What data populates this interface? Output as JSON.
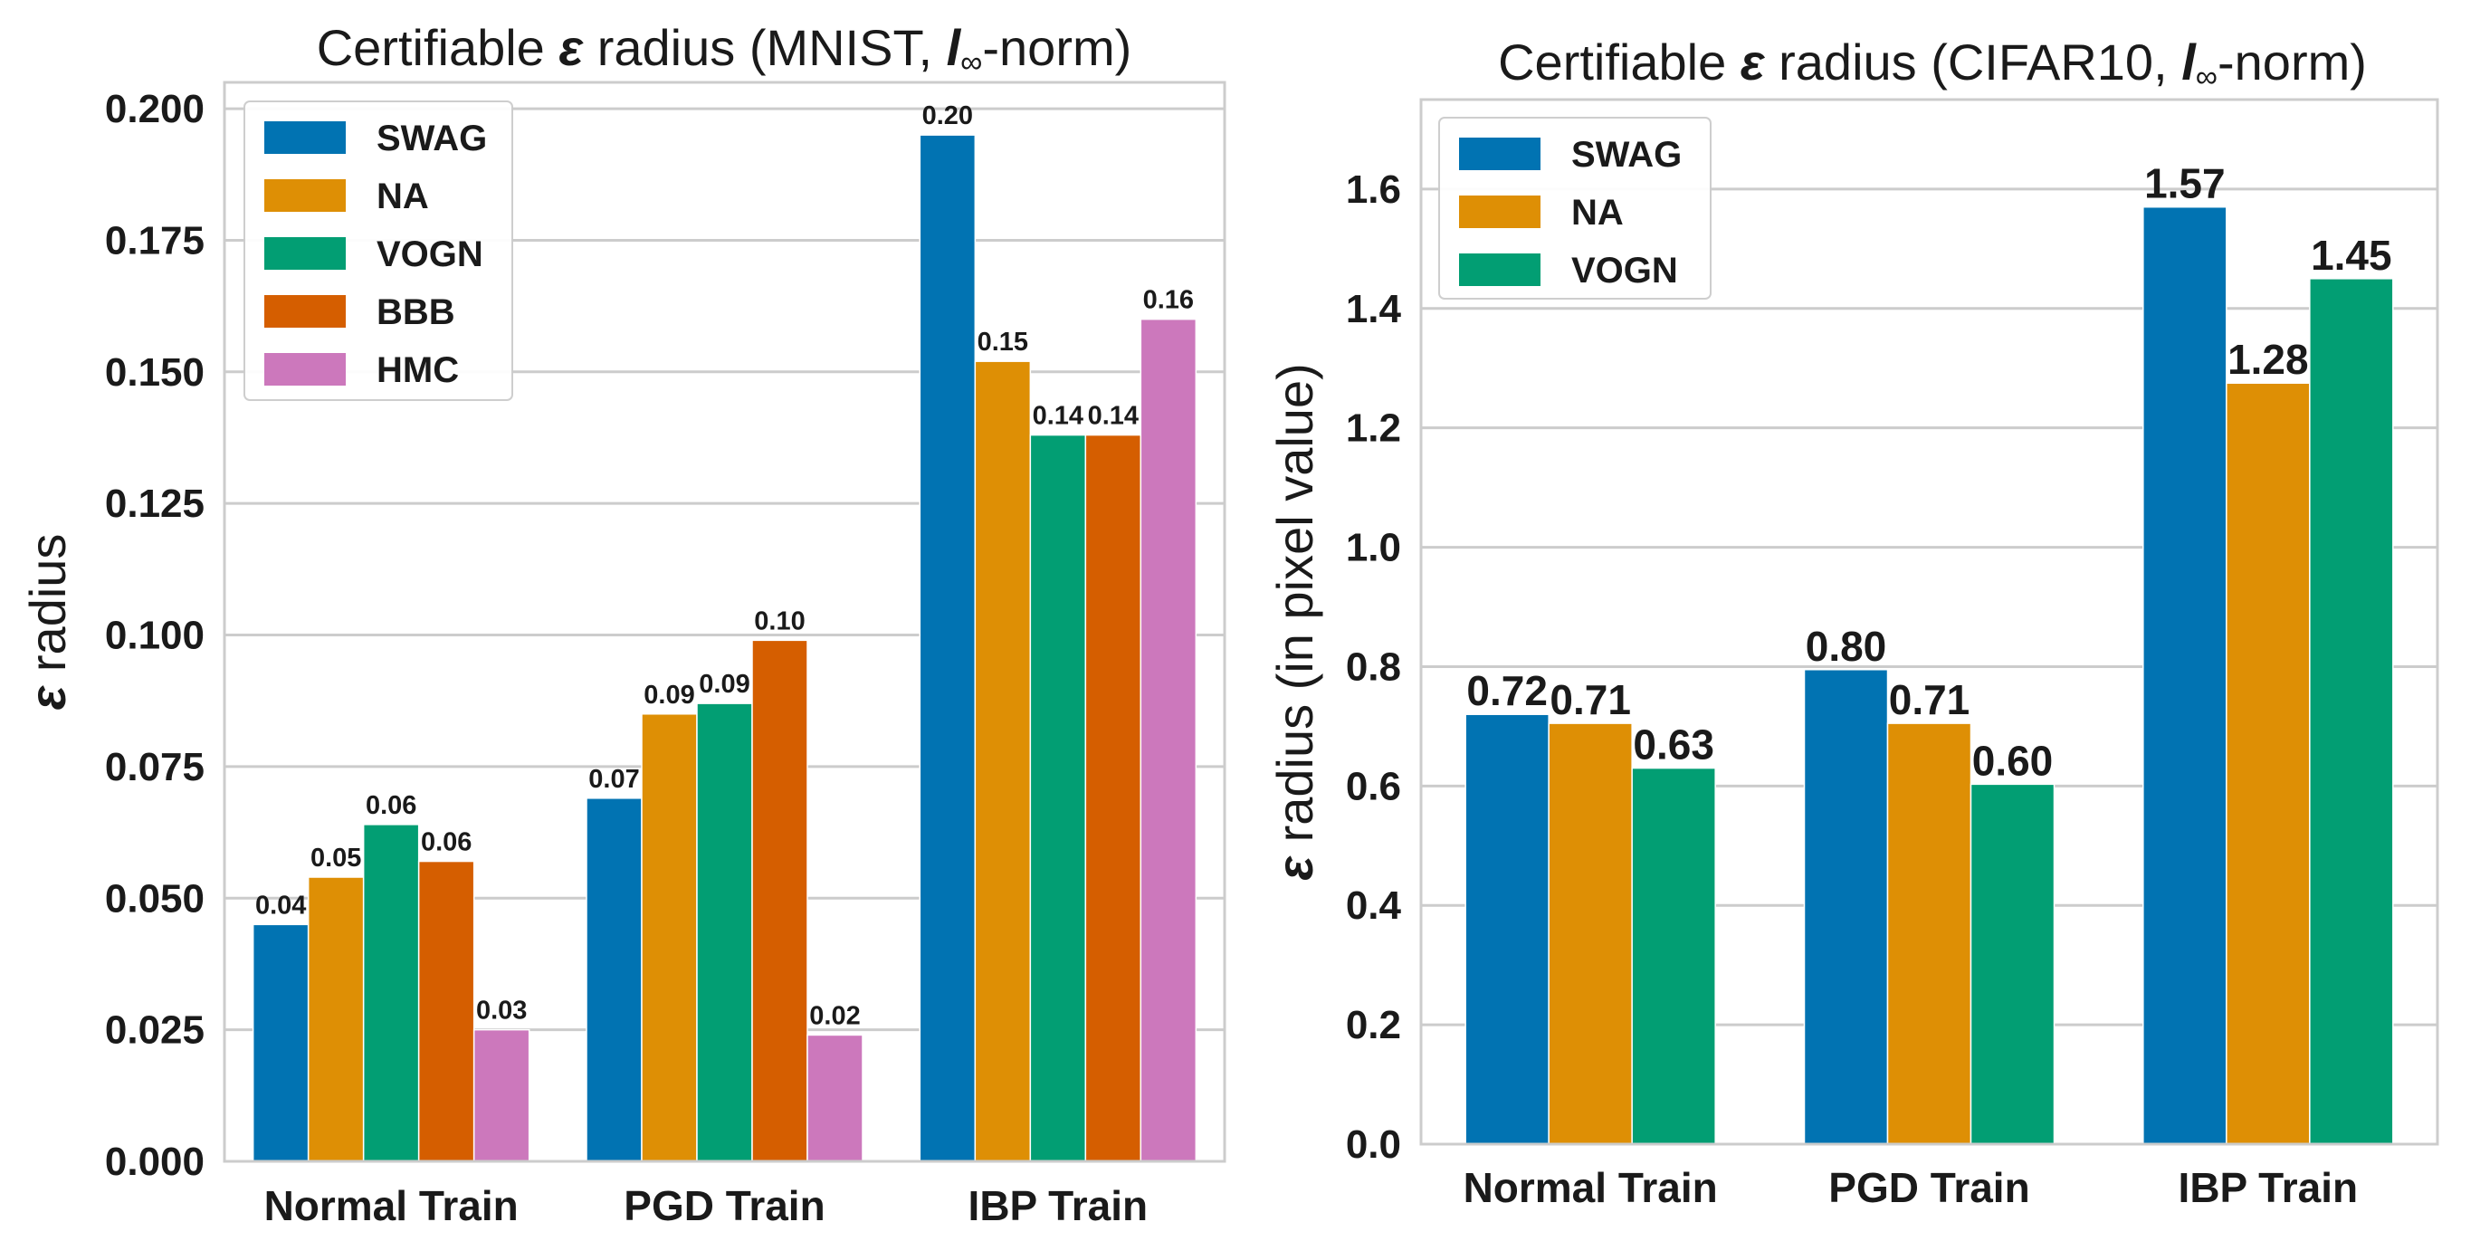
{
  "colors": {
    "SWAG": "#0173b2",
    "NA": "#de8f05",
    "VOGN": "#029e73",
    "BBB": "#d55e00",
    "HMC": "#cc78bc",
    "grid": "#cccccc",
    "frame": "#cccccc",
    "text": "#1a1a1a"
  },
  "chart_data": [
    {
      "type": "bar",
      "title_parts": [
        "Certifiable ",
        "ε",
        " radius (MNIST, ",
        "l",
        "∞",
        "-norm)"
      ],
      "xlabel": "",
      "ylabel_parts": [
        "ε",
        " radius"
      ],
      "categories": [
        "Normal Train",
        "PGD Train",
        "IBP Train"
      ],
      "ylim": [
        0,
        0.205
      ],
      "yticks": [
        "0.000",
        "0.025",
        "0.050",
        "0.075",
        "0.100",
        "0.125",
        "0.150",
        "0.175",
        "0.200"
      ],
      "ytick_values": [
        0,
        0.025,
        0.05,
        0.075,
        0.1,
        0.125,
        0.15,
        0.175,
        0.2
      ],
      "grid": true,
      "legend_position": "top-left",
      "series": [
        {
          "name": "SWAG",
          "values": [
            0.045,
            0.069,
            0.195
          ],
          "labels": [
            "0.04",
            "0.07",
            "0.20"
          ]
        },
        {
          "name": "NA",
          "values": [
            0.054,
            0.085,
            0.152
          ],
          "labels": [
            "0.05",
            "0.09",
            "0.15"
          ]
        },
        {
          "name": "VOGN",
          "values": [
            0.064,
            0.087,
            0.138
          ],
          "labels": [
            "0.06",
            "0.09",
            "0.14"
          ]
        },
        {
          "name": "BBB",
          "values": [
            0.057,
            0.099,
            0.138
          ],
          "labels": [
            "0.06",
            "0.10",
            "0.14"
          ]
        },
        {
          "name": "HMC",
          "values": [
            0.025,
            0.024,
            0.16
          ],
          "labels": [
            "0.03",
            "0.02",
            "0.16"
          ]
        }
      ]
    },
    {
      "type": "bar",
      "title_parts": [
        "Certifiable ",
        "ε",
        " radius (CIFAR10, ",
        "l",
        "∞",
        "-norm)"
      ],
      "xlabel": "",
      "ylabel_parts": [
        "ε",
        " radius (in pixel value)"
      ],
      "categories": [
        "Normal Train",
        "PGD Train",
        "IBP Train"
      ],
      "ylim": [
        0,
        1.75
      ],
      "yticks": [
        "0.0",
        "0.2",
        "0.4",
        "0.6",
        "0.8",
        "1.0",
        "1.2",
        "1.4",
        "1.6"
      ],
      "ytick_values": [
        0,
        0.2,
        0.4,
        0.6,
        0.8,
        1.0,
        1.2,
        1.4,
        1.6
      ],
      "grid": true,
      "legend_position": "top-left",
      "series": [
        {
          "name": "SWAG",
          "values": [
            0.72,
            0.795,
            1.57
          ],
          "labels": [
            "0.72",
            "0.80",
            "1.57"
          ]
        },
        {
          "name": "NA",
          "values": [
            0.705,
            0.705,
            1.275
          ],
          "labels": [
            "0.71",
            "0.71",
            "1.28"
          ]
        },
        {
          "name": "VOGN",
          "values": [
            0.63,
            0.603,
            1.45
          ],
          "labels": [
            "0.63",
            "0.60",
            "1.45"
          ]
        }
      ]
    }
  ]
}
